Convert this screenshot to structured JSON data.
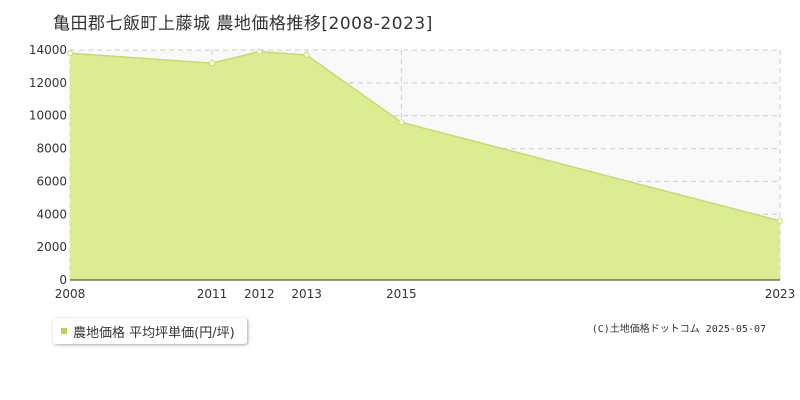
{
  "title": "亀田郡七飯町上藤城 農地価格推移[2008-2023]",
  "legend": {
    "label": "農地価格 平均坪単価(円/坪)",
    "color": "#b5d54a"
  },
  "copyright": "(C)土地価格ドットコム 2025-05-07",
  "chart_data": {
    "type": "area",
    "title": "亀田郡七飯町上藤城 農地価格推移[2008-2023]",
    "xlabel": "",
    "ylabel": "",
    "x": [
      2008,
      2011,
      2012,
      2013,
      2015,
      2023
    ],
    "x_tick_labels": [
      "2008",
      "2011",
      "2012",
      "2013",
      "2015",
      "2023"
    ],
    "series": [
      {
        "name": "農地価格 平均坪単価(円/坪)",
        "values": [
          13800,
          13200,
          13900,
          13700,
          9600,
          3600
        ]
      }
    ],
    "ylim": [
      0,
      14000
    ],
    "y_ticks": [
      0,
      2000,
      4000,
      6000,
      8000,
      10000,
      12000,
      14000
    ],
    "grid": true,
    "legend_position": "bottom-left",
    "colors": {
      "fill": "#dcec93",
      "line": "#c4e05a",
      "grid": "#cccccc",
      "plot_bg": "#f9f9f9"
    }
  }
}
